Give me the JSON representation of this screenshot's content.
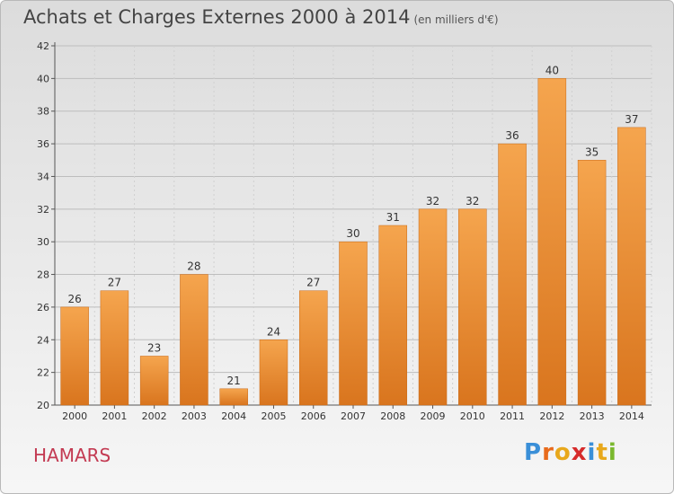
{
  "header": {
    "title": "Achats et Charges Externes 2000 à 2014",
    "unit": "(en milliers d'€)"
  },
  "footer": {
    "commune": "HAMARS",
    "logo": "Proxiti"
  },
  "colors": {
    "bar_light": "#f5a54e",
    "bar_dark": "#d9751e",
    "bar_edge": "#c96a17",
    "commune": "#c33a52",
    "logo_letters": [
      "#3a8fd8",
      "#e86b1c",
      "#e8a81c",
      "#d62b2b",
      "#3a8fd8",
      "#e8a81c",
      "#7ab82e"
    ]
  },
  "chart_data": {
    "type": "bar",
    "title": "Achats et Charges Externes 2000 à 2014",
    "subtitle": "(en milliers d'€)",
    "categories": [
      "2000",
      "2001",
      "2002",
      "2003",
      "2004",
      "2005",
      "2006",
      "2007",
      "2008",
      "2009",
      "2010",
      "2011",
      "2012",
      "2013",
      "2014"
    ],
    "values": [
      26,
      27,
      23,
      28,
      21,
      24,
      27,
      30,
      31,
      32,
      32,
      36,
      40,
      35,
      37
    ],
    "ylim": [
      20,
      42
    ],
    "yticks": [
      20,
      22,
      24,
      26,
      28,
      30,
      32,
      34,
      36,
      38,
      40,
      42
    ],
    "grid": true,
    "data_labels": true
  }
}
